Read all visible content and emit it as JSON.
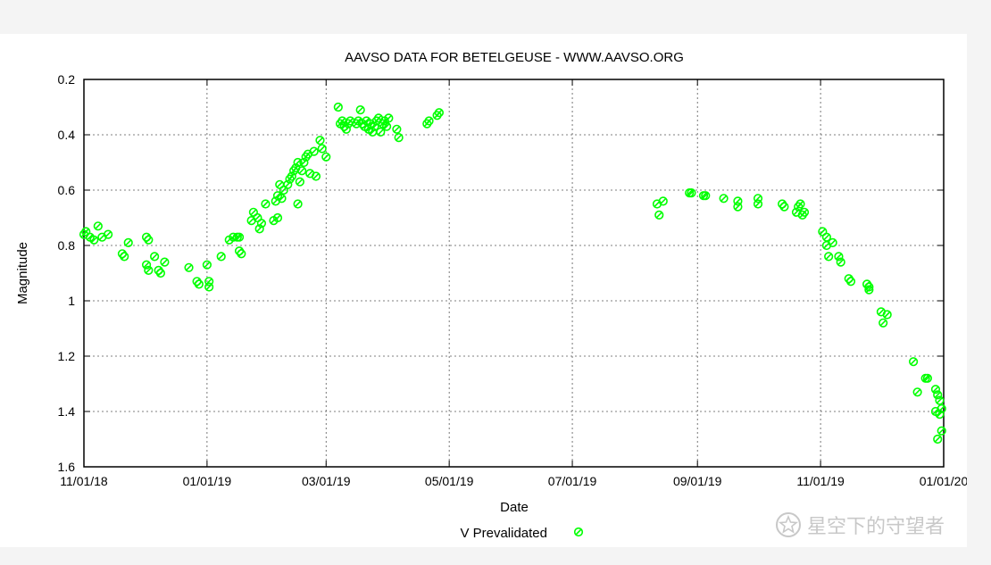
{
  "chart_data": {
    "type": "scatter",
    "title": "AAVSO DATA FOR BETELGEUSE - WWW.AAVSO.ORG",
    "xlabel": "Date",
    "ylabel": "Magnitude",
    "ylim": [
      0.2,
      1.6
    ],
    "y_inverted": true,
    "x_range_dates": [
      "2018-11-01",
      "2020-01-01"
    ],
    "grid": true,
    "legend_position": "bottom-center",
    "x_ticks": [
      {
        "label": "11/01/18",
        "date": "2018-11-01"
      },
      {
        "label": "01/01/19",
        "date": "2019-01-01"
      },
      {
        "label": "03/01/19",
        "date": "2019-03-01"
      },
      {
        "label": "05/01/19",
        "date": "2019-05-01"
      },
      {
        "label": "07/01/19",
        "date": "2019-07-01"
      },
      {
        "label": "09/01/19",
        "date": "2019-09-01"
      },
      {
        "label": "11/01/19",
        "date": "2019-11-01"
      },
      {
        "label": "01/01/20",
        "date": "2020-01-01"
      }
    ],
    "y_ticks": [
      "0.2",
      "0.4",
      "0.6",
      "0.8",
      "1",
      "1.2",
      "1.4",
      "1.6"
    ],
    "series": [
      {
        "name": "V Prevalidated",
        "color": "#00ff00",
        "points": [
          [
            "2018-11-01",
            0.76
          ],
          [
            "2018-11-02",
            0.75
          ],
          [
            "2018-11-04",
            0.77
          ],
          [
            "2018-11-06",
            0.78
          ],
          [
            "2018-11-08",
            0.73
          ],
          [
            "2018-11-10",
            0.77
          ],
          [
            "2018-11-13",
            0.76
          ],
          [
            "2018-11-20",
            0.83
          ],
          [
            "2018-11-21",
            0.84
          ],
          [
            "2018-11-23",
            0.79
          ],
          [
            "2018-12-02",
            0.77
          ],
          [
            "2018-12-03",
            0.78
          ],
          [
            "2018-12-02",
            0.87
          ],
          [
            "2018-12-03",
            0.89
          ],
          [
            "2018-12-06",
            0.84
          ],
          [
            "2018-12-08",
            0.89
          ],
          [
            "2018-12-09",
            0.9
          ],
          [
            "2018-12-11",
            0.86
          ],
          [
            "2018-12-23",
            0.88
          ],
          [
            "2018-12-27",
            0.93
          ],
          [
            "2018-12-28",
            0.94
          ],
          [
            "2019-01-01",
            0.87
          ],
          [
            "2019-01-02",
            0.93
          ],
          [
            "2019-01-02",
            0.95
          ],
          [
            "2019-01-08",
            0.84
          ],
          [
            "2019-01-12",
            0.78
          ],
          [
            "2019-01-14",
            0.77
          ],
          [
            "2019-01-16",
            0.77
          ],
          [
            "2019-01-17",
            0.82
          ],
          [
            "2019-01-18",
            0.83
          ],
          [
            "2019-01-17",
            0.77
          ],
          [
            "2019-01-23",
            0.71
          ],
          [
            "2019-01-24",
            0.68
          ],
          [
            "2019-01-26",
            0.7
          ],
          [
            "2019-01-27",
            0.74
          ],
          [
            "2019-01-28",
            0.72
          ],
          [
            "2019-01-30",
            0.65
          ],
          [
            "2019-02-03",
            0.71
          ],
          [
            "2019-02-04",
            0.64
          ],
          [
            "2019-02-05",
            0.7
          ],
          [
            "2019-02-05",
            0.62
          ],
          [
            "2019-02-06",
            0.58
          ],
          [
            "2019-02-07",
            0.63
          ],
          [
            "2019-02-08",
            0.6
          ],
          [
            "2019-02-10",
            0.58
          ],
          [
            "2019-02-11",
            0.56
          ],
          [
            "2019-02-12",
            0.55
          ],
          [
            "2019-02-13",
            0.53
          ],
          [
            "2019-02-14",
            0.52
          ],
          [
            "2019-02-15",
            0.5
          ],
          [
            "2019-02-15",
            0.65
          ],
          [
            "2019-02-16",
            0.57
          ],
          [
            "2019-02-17",
            0.53
          ],
          [
            "2019-02-18",
            0.5
          ],
          [
            "2019-02-19",
            0.48
          ],
          [
            "2019-02-20",
            0.47
          ],
          [
            "2019-02-21",
            0.54
          ],
          [
            "2019-02-23",
            0.46
          ],
          [
            "2019-02-24",
            0.55
          ],
          [
            "2019-02-26",
            0.42
          ],
          [
            "2019-02-27",
            0.45
          ],
          [
            "2019-03-01",
            0.48
          ],
          [
            "2019-03-07",
            0.3
          ],
          [
            "2019-03-08",
            0.36
          ],
          [
            "2019-03-09",
            0.35
          ],
          [
            "2019-03-10",
            0.37
          ],
          [
            "2019-03-11",
            0.38
          ],
          [
            "2019-03-12",
            0.36
          ],
          [
            "2019-03-13",
            0.35
          ],
          [
            "2019-03-16",
            0.36
          ],
          [
            "2019-03-17",
            0.35
          ],
          [
            "2019-03-18",
            0.31
          ],
          [
            "2019-03-19",
            0.36
          ],
          [
            "2019-03-20",
            0.37
          ],
          [
            "2019-03-21",
            0.35
          ],
          [
            "2019-03-22",
            0.38
          ],
          [
            "2019-03-23",
            0.36
          ],
          [
            "2019-03-24",
            0.39
          ],
          [
            "2019-03-25",
            0.37
          ],
          [
            "2019-03-26",
            0.35
          ],
          [
            "2019-03-27",
            0.34
          ],
          [
            "2019-03-28",
            0.39
          ],
          [
            "2019-03-29",
            0.36
          ],
          [
            "2019-03-30",
            0.35
          ],
          [
            "2019-03-31",
            0.37
          ],
          [
            "2019-04-01",
            0.34
          ],
          [
            "2019-04-05",
            0.38
          ],
          [
            "2019-04-06",
            0.41
          ],
          [
            "2019-04-20",
            0.36
          ],
          [
            "2019-04-21",
            0.35
          ],
          [
            "2019-04-25",
            0.33
          ],
          [
            "2019-04-26",
            0.32
          ],
          [
            "2019-08-12",
            0.65
          ],
          [
            "2019-08-13",
            0.69
          ],
          [
            "2019-08-15",
            0.64
          ],
          [
            "2019-08-28",
            0.61
          ],
          [
            "2019-08-29",
            0.61
          ],
          [
            "2019-09-04",
            0.62
          ],
          [
            "2019-09-05",
            0.62
          ],
          [
            "2019-09-14",
            0.63
          ],
          [
            "2019-09-21",
            0.64
          ],
          [
            "2019-09-21",
            0.66
          ],
          [
            "2019-10-01",
            0.63
          ],
          [
            "2019-10-01",
            0.65
          ],
          [
            "2019-10-13",
            0.65
          ],
          [
            "2019-10-14",
            0.66
          ],
          [
            "2019-10-20",
            0.68
          ],
          [
            "2019-10-21",
            0.66
          ],
          [
            "2019-10-22",
            0.65
          ],
          [
            "2019-10-23",
            0.69
          ],
          [
            "2019-10-24",
            0.68
          ],
          [
            "2019-11-02",
            0.75
          ],
          [
            "2019-11-04",
            0.77
          ],
          [
            "2019-11-04",
            0.8
          ],
          [
            "2019-11-05",
            0.84
          ],
          [
            "2019-11-07",
            0.79
          ],
          [
            "2019-11-10",
            0.84
          ],
          [
            "2019-11-11",
            0.86
          ],
          [
            "2019-11-15",
            0.92
          ],
          [
            "2019-11-16",
            0.93
          ],
          [
            "2019-11-24",
            0.94
          ],
          [
            "2019-11-25",
            0.96
          ],
          [
            "2019-11-25",
            0.95
          ],
          [
            "2019-12-01",
            1.04
          ],
          [
            "2019-12-02",
            1.08
          ],
          [
            "2019-12-04",
            1.05
          ],
          [
            "2019-12-17",
            1.22
          ],
          [
            "2019-12-19",
            1.33
          ],
          [
            "2019-12-23",
            1.28
          ],
          [
            "2019-12-24",
            1.28
          ],
          [
            "2019-12-28",
            1.32
          ],
          [
            "2019-12-28",
            1.4
          ],
          [
            "2019-12-29",
            1.34
          ],
          [
            "2019-12-29",
            1.5
          ],
          [
            "2019-12-30",
            1.36
          ],
          [
            "2019-12-30",
            1.41
          ],
          [
            "2019-12-31",
            1.39
          ],
          [
            "2019-12-31",
            1.47
          ]
        ]
      }
    ]
  },
  "watermark_text": "星空下的守望者"
}
